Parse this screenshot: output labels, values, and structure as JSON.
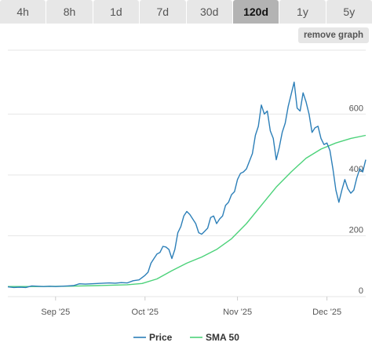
{
  "tabs": [
    {
      "label": "4h",
      "active": false
    },
    {
      "label": "8h",
      "active": false
    },
    {
      "label": "1d",
      "active": false
    },
    {
      "label": "7d",
      "active": false
    },
    {
      "label": "30d",
      "active": false
    },
    {
      "label": "120d",
      "active": true
    },
    {
      "label": "1y",
      "active": false
    },
    {
      "label": "5y",
      "active": false
    }
  ],
  "remove_graph_label": "remove graph",
  "colors": {
    "price": "#2c7fb8",
    "sma": "#4cd27a",
    "grid": "#e6e6e6",
    "tab_bg": "#e7e7e7",
    "tab_active_bg": "#b3b3b3"
  },
  "chart_data": {
    "type": "line",
    "x_ticks": [
      {
        "label": "Sep '25",
        "x": 16
      },
      {
        "label": "Oct '25",
        "x": 46
      },
      {
        "label": "Nov '25",
        "x": 77
      },
      {
        "label": "Dec '25",
        "x": 107
      }
    ],
    "y_ticks": [
      0,
      200,
      400,
      600
    ],
    "ylim": [
      0,
      810
    ],
    "xlim": [
      0,
      120
    ],
    "grid": true,
    "legend_position": "bottom",
    "series": [
      {
        "name": "Price",
        "color": "#2c7fb8",
        "points": [
          [
            0,
            32
          ],
          [
            2,
            30
          ],
          [
            4,
            31
          ],
          [
            6,
            30
          ],
          [
            8,
            35
          ],
          [
            10,
            34
          ],
          [
            12,
            33
          ],
          [
            14,
            34
          ],
          [
            16,
            33
          ],
          [
            18,
            34
          ],
          [
            20,
            35
          ],
          [
            22,
            36
          ],
          [
            24,
            42
          ],
          [
            26,
            41
          ],
          [
            28,
            42
          ],
          [
            30,
            43
          ],
          [
            32,
            44
          ],
          [
            34,
            45
          ],
          [
            36,
            44
          ],
          [
            38,
            46
          ],
          [
            40,
            45
          ],
          [
            42,
            52
          ],
          [
            44,
            55
          ],
          [
            46,
            70
          ],
          [
            47,
            80
          ],
          [
            48,
            110
          ],
          [
            49,
            125
          ],
          [
            50,
            140
          ],
          [
            51,
            145
          ],
          [
            52,
            165
          ],
          [
            53,
            163
          ],
          [
            54,
            155
          ],
          [
            55,
            125
          ],
          [
            56,
            155
          ],
          [
            57,
            210
          ],
          [
            58,
            230
          ],
          [
            59,
            265
          ],
          [
            60,
            280
          ],
          [
            61,
            270
          ],
          [
            62,
            255
          ],
          [
            63,
            240
          ],
          [
            64,
            210
          ],
          [
            65,
            205
          ],
          [
            66,
            215
          ],
          [
            67,
            225
          ],
          [
            68,
            260
          ],
          [
            69,
            265
          ],
          [
            70,
            240
          ],
          [
            71,
            255
          ],
          [
            72,
            265
          ],
          [
            73,
            300
          ],
          [
            74,
            310
          ],
          [
            75,
            335
          ],
          [
            76,
            345
          ],
          [
            77,
            385
          ],
          [
            78,
            405
          ],
          [
            79,
            410
          ],
          [
            80,
            420
          ],
          [
            81,
            445
          ],
          [
            82,
            470
          ],
          [
            83,
            530
          ],
          [
            84,
            560
          ],
          [
            85,
            630
          ],
          [
            86,
            600
          ],
          [
            87,
            610
          ],
          [
            88,
            545
          ],
          [
            89,
            520
          ],
          [
            90,
            450
          ],
          [
            91,
            490
          ],
          [
            92,
            540
          ],
          [
            93,
            570
          ],
          [
            94,
            625
          ],
          [
            95,
            665
          ],
          [
            96,
            705
          ],
          [
            97,
            620
          ],
          [
            98,
            610
          ],
          [
            99,
            670
          ],
          [
            100,
            640
          ],
          [
            101,
            600
          ],
          [
            102,
            540
          ],
          [
            103,
            555
          ],
          [
            104,
            560
          ],
          [
            105,
            520
          ],
          [
            106,
            500
          ],
          [
            107,
            505
          ],
          [
            108,
            480
          ],
          [
            109,
            420
          ],
          [
            110,
            350
          ],
          [
            111,
            310
          ],
          [
            112,
            350
          ],
          [
            113,
            385
          ],
          [
            114,
            355
          ],
          [
            115,
            340
          ],
          [
            116,
            350
          ],
          [
            117,
            390
          ],
          [
            118,
            420
          ],
          [
            119,
            410
          ],
          [
            120,
            450
          ]
        ]
      },
      {
        "name": "SMA 50",
        "color": "#4cd27a",
        "points": [
          [
            0,
            33
          ],
          [
            10,
            33
          ],
          [
            20,
            34
          ],
          [
            30,
            36
          ],
          [
            40,
            39
          ],
          [
            45,
            43
          ],
          [
            50,
            58
          ],
          [
            55,
            85
          ],
          [
            60,
            110
          ],
          [
            65,
            130
          ],
          [
            70,
            155
          ],
          [
            75,
            190
          ],
          [
            80,
            240
          ],
          [
            85,
            300
          ],
          [
            90,
            360
          ],
          [
            95,
            410
          ],
          [
            100,
            455
          ],
          [
            105,
            485
          ],
          [
            110,
            505
          ],
          [
            115,
            520
          ],
          [
            120,
            530
          ]
        ]
      }
    ]
  }
}
